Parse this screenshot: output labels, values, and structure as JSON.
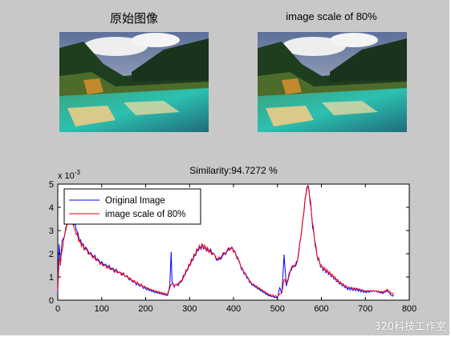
{
  "figure": {
    "left_title": "原始图像",
    "right_title": "image scale of 80%",
    "plot_title": "Similarity:94.7272 %",
    "watermark": "320科技工作室"
  },
  "chart_data": {
    "type": "line",
    "title": "Similarity:94.7272 %",
    "xlabel": "",
    "ylabel": "",
    "y_exponent_label": "x 10",
    "y_exponent_power": "-3",
    "xlim": [
      0,
      800
    ],
    "ylim": [
      0,
      5
    ],
    "x_ticks": [
      "0",
      "100",
      "200",
      "300",
      "400",
      "500",
      "600",
      "700",
      "800"
    ],
    "y_ticks": [
      "0",
      "1",
      "2",
      "3",
      "4",
      "5"
    ],
    "legend_position": "top-left",
    "grid": false,
    "series": [
      {
        "name": "Original Image",
        "color": "#0000ff",
        "points": [
          [
            0,
            0.3
          ],
          [
            3,
            2.4
          ],
          [
            6,
            1.5
          ],
          [
            10,
            2.6
          ],
          [
            15,
            2.7
          ],
          [
            20,
            3.2
          ],
          [
            25,
            3.5
          ],
          [
            30,
            3.6
          ],
          [
            35,
            3.5
          ],
          [
            40,
            3.2
          ],
          [
            50,
            2.6
          ],
          [
            60,
            2.3
          ],
          [
            75,
            2.0
          ],
          [
            100,
            1.6
          ],
          [
            125,
            1.35
          ],
          [
            150,
            1.1
          ],
          [
            175,
            0.75
          ],
          [
            200,
            0.5
          ],
          [
            220,
            0.35
          ],
          [
            240,
            0.25
          ],
          [
            250,
            0.2
          ],
          [
            255,
            0.6
          ],
          [
            258,
            2.1
          ],
          [
            260,
            0.8
          ],
          [
            265,
            0.6
          ],
          [
            280,
            0.75
          ],
          [
            300,
            1.5
          ],
          [
            320,
            2.2
          ],
          [
            330,
            2.3
          ],
          [
            340,
            2.15
          ],
          [
            350,
            2.1
          ],
          [
            365,
            1.7
          ],
          [
            380,
            2.0
          ],
          [
            395,
            2.3
          ],
          [
            405,
            2.0
          ],
          [
            420,
            1.3
          ],
          [
            440,
            0.7
          ],
          [
            460,
            0.45
          ],
          [
            480,
            0.2
          ],
          [
            500,
            0.1
          ],
          [
            505,
            0.6
          ],
          [
            510,
            0.3
          ],
          [
            515,
            1.9
          ],
          [
            520,
            0.6
          ],
          [
            530,
            1.3
          ],
          [
            545,
            1.6
          ],
          [
            555,
            3.0
          ],
          [
            563,
            4.3
          ],
          [
            568,
            5.0
          ],
          [
            572,
            4.7
          ],
          [
            580,
            3.2
          ],
          [
            590,
            1.9
          ],
          [
            600,
            1.4
          ],
          [
            620,
            1.1
          ],
          [
            640,
            0.75
          ],
          [
            660,
            0.5
          ],
          [
            680,
            0.45
          ],
          [
            700,
            0.35
          ],
          [
            720,
            0.4
          ],
          [
            740,
            0.3
          ],
          [
            750,
            0.4
          ],
          [
            760,
            0.2
          ],
          [
            765,
            0.2
          ]
        ]
      },
      {
        "name": "image scale of 80%",
        "color": "#ff0000",
        "points": [
          [
            0,
            0.4
          ],
          [
            3,
            1.8
          ],
          [
            6,
            1.6
          ],
          [
            10,
            2.2
          ],
          [
            15,
            2.8
          ],
          [
            20,
            3.1
          ],
          [
            25,
            3.5
          ],
          [
            30,
            3.4
          ],
          [
            35,
            3.35
          ],
          [
            40,
            3.0
          ],
          [
            50,
            2.5
          ],
          [
            60,
            2.25
          ],
          [
            75,
            1.95
          ],
          [
            100,
            1.55
          ],
          [
            125,
            1.3
          ],
          [
            150,
            1.1
          ],
          [
            175,
            0.8
          ],
          [
            200,
            0.55
          ],
          [
            220,
            0.4
          ],
          [
            240,
            0.3
          ],
          [
            250,
            0.25
          ],
          [
            255,
            0.5
          ],
          [
            258,
            0.7
          ],
          [
            260,
            0.7
          ],
          [
            265,
            0.6
          ],
          [
            280,
            0.8
          ],
          [
            300,
            1.55
          ],
          [
            320,
            2.25
          ],
          [
            330,
            2.35
          ],
          [
            340,
            2.2
          ],
          [
            350,
            2.05
          ],
          [
            365,
            1.75
          ],
          [
            380,
            2.05
          ],
          [
            395,
            2.25
          ],
          [
            405,
            2.0
          ],
          [
            420,
            1.35
          ],
          [
            440,
            0.75
          ],
          [
            460,
            0.5
          ],
          [
            480,
            0.25
          ],
          [
            500,
            0.15
          ],
          [
            505,
            0.3
          ],
          [
            510,
            0.35
          ],
          [
            515,
            0.9
          ],
          [
            520,
            0.7
          ],
          [
            530,
            1.35
          ],
          [
            545,
            1.65
          ],
          [
            555,
            3.0
          ],
          [
            563,
            4.3
          ],
          [
            568,
            4.85
          ],
          [
            572,
            4.75
          ],
          [
            580,
            3.3
          ],
          [
            590,
            1.95
          ],
          [
            600,
            1.45
          ],
          [
            620,
            1.15
          ],
          [
            640,
            0.8
          ],
          [
            660,
            0.55
          ],
          [
            680,
            0.5
          ],
          [
            700,
            0.4
          ],
          [
            720,
            0.4
          ],
          [
            740,
            0.35
          ],
          [
            750,
            0.45
          ],
          [
            760,
            0.3
          ],
          [
            765,
            0.25
          ]
        ]
      }
    ]
  }
}
